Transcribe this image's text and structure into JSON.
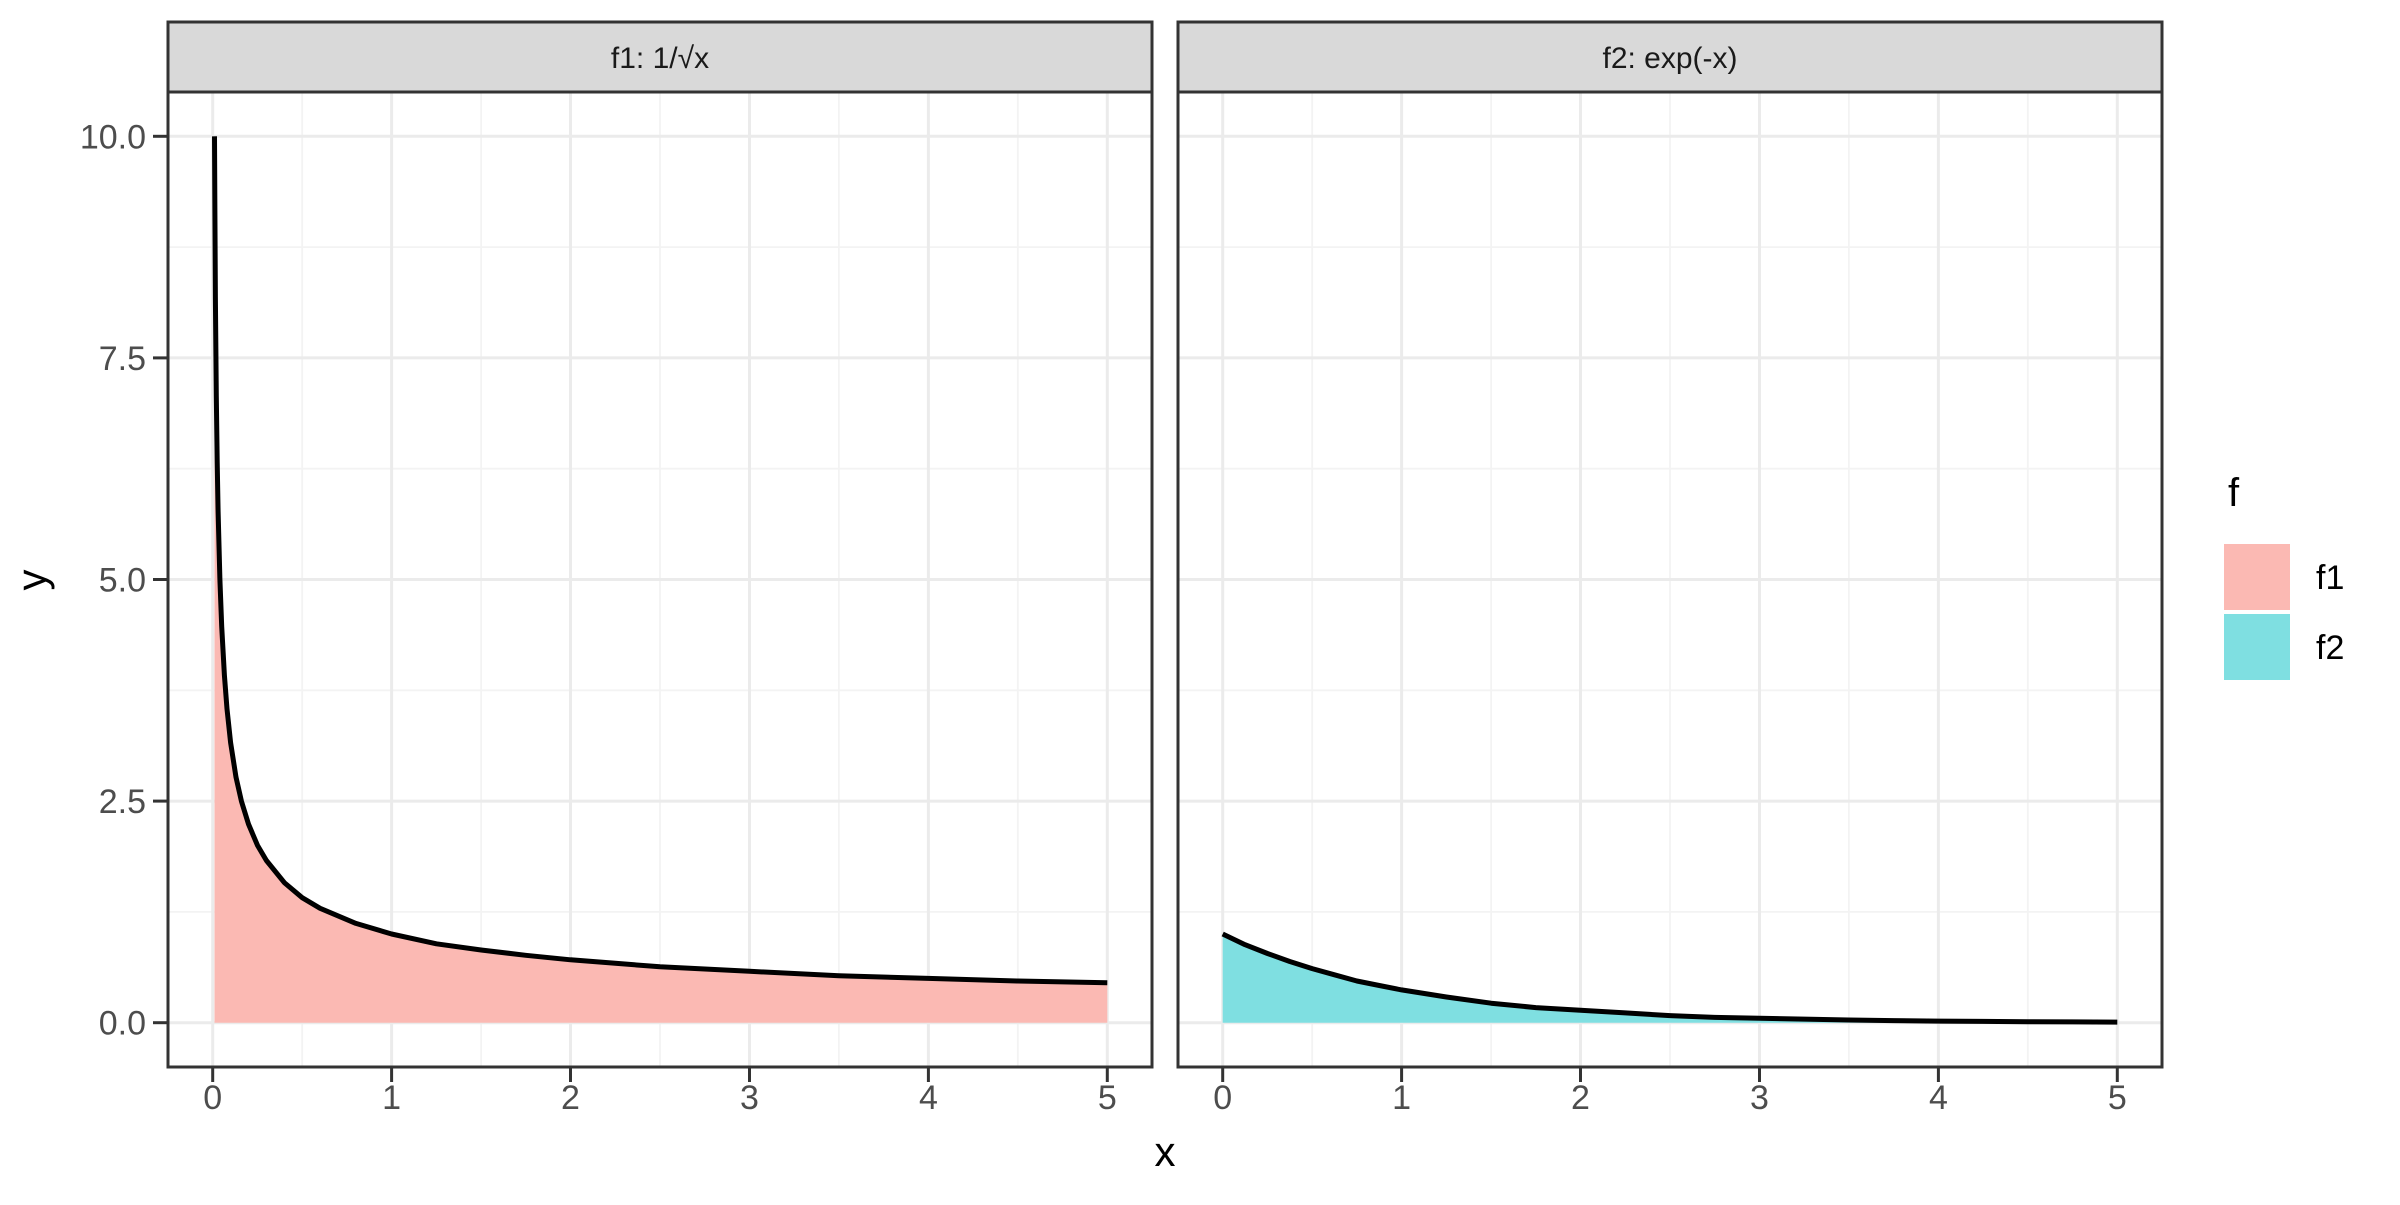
{
  "style": {
    "background": "#ffffff",
    "panel_background": "#ffffff",
    "strip_background": "#d9d9d9",
    "panel_border": "#333333",
    "grid_major": "#ebebeb",
    "grid_minor": "#f3f3f3",
    "tick_color": "#333333",
    "tick_label_color": "#4d4d4d",
    "curve_color": "#000000"
  },
  "chart_data": {
    "type": "area",
    "title": "",
    "xlabel": "x",
    "ylabel": "y",
    "x_domain": [
      -0.25,
      5.25
    ],
    "y_domain": [
      -0.5,
      10.5
    ],
    "x_range": [
      0,
      5
    ],
    "y_range": [
      0,
      10
    ],
    "grid": "major+minor",
    "x_ticks": {
      "values": [
        0,
        1,
        2,
        3,
        4,
        5
      ],
      "labels": [
        "0",
        "1",
        "2",
        "3",
        "4",
        "5"
      ],
      "minor": [
        0.5,
        1.5,
        2.5,
        3.5,
        4.5
      ]
    },
    "y_ticks": {
      "values": [
        0,
        2.5,
        5,
        7.5,
        10
      ],
      "labels": [
        "0.0",
        "2.5",
        "5.0",
        "7.5",
        "10.0"
      ],
      "minor": [
        1.25,
        3.75,
        6.25,
        8.75
      ]
    },
    "legend": {
      "title": "f",
      "position": "right",
      "entries": [
        {
          "label": "f1",
          "color": "#fbb9b3"
        },
        {
          "label": "f2",
          "color": "#7fdfe1"
        }
      ]
    },
    "facets": [
      {
        "strip_label": "f1: 1/√x",
        "series": "f1",
        "fill": "#fbb9b3",
        "line": "#000000",
        "x": [
          0.01,
          0.012,
          0.015,
          0.02,
          0.025,
          0.03,
          0.04,
          0.05,
          0.065,
          0.08,
          0.1,
          0.13,
          0.16,
          0.2,
          0.25,
          0.3,
          0.4,
          0.5,
          0.6,
          0.8,
          1,
          1.25,
          1.5,
          1.75,
          2,
          2.25,
          2.5,
          3,
          3.5,
          4,
          4.5,
          5
        ],
        "y": [
          10,
          9.13,
          8.16,
          7.07,
          6.32,
          5.77,
          5,
          4.47,
          3.92,
          3.54,
          3.16,
          2.77,
          2.5,
          2.24,
          2,
          1.83,
          1.58,
          1.41,
          1.29,
          1.12,
          1,
          0.89,
          0.82,
          0.76,
          0.71,
          0.67,
          0.63,
          0.58,
          0.53,
          0.5,
          0.47,
          0.45
        ]
      },
      {
        "strip_label": "f2: exp(-x)",
        "series": "f2",
        "fill": "#7fdfe1",
        "line": "#000000",
        "x": [
          0,
          0.125,
          0.25,
          0.375,
          0.5,
          0.625,
          0.75,
          0.875,
          1,
          1.25,
          1.5,
          1.75,
          2,
          2.25,
          2.5,
          2.75,
          3,
          3.25,
          3.5,
          3.75,
          4,
          4.25,
          4.5,
          4.75,
          5
        ],
        "y": [
          1,
          0.88,
          0.78,
          0.69,
          0.61,
          0.54,
          0.47,
          0.42,
          0.37,
          0.29,
          0.22,
          0.17,
          0.14,
          0.11,
          0.08,
          0.06,
          0.05,
          0.04,
          0.03,
          0.024,
          0.018,
          0.014,
          0.011,
          0.009,
          0.007
        ]
      }
    ]
  }
}
